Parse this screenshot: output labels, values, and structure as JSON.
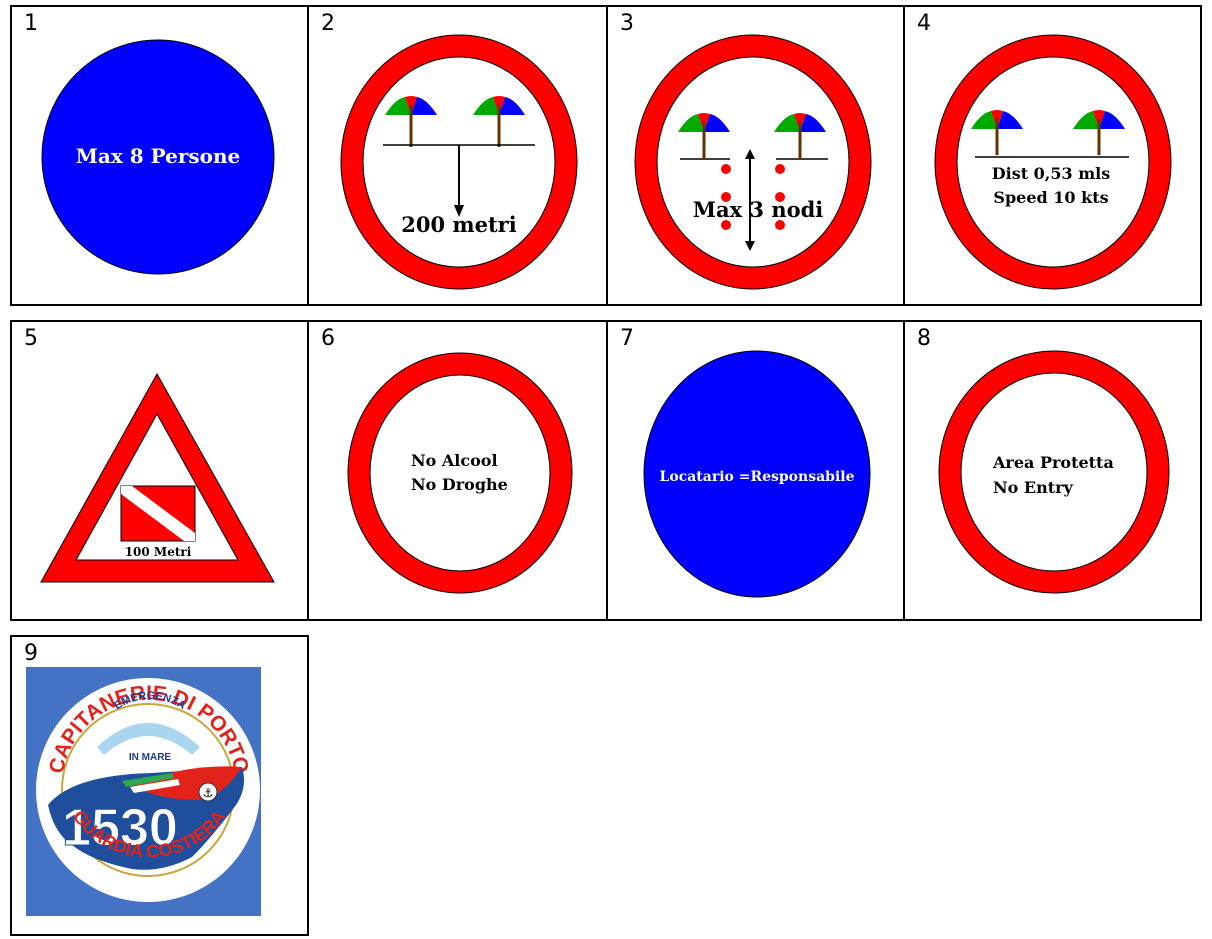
{
  "signs": [
    {
      "number": "1",
      "text": "Max 8 Persone"
    },
    {
      "number": "2",
      "text": "200 metri"
    },
    {
      "number": "3",
      "text": "Max 3 nodi"
    },
    {
      "number": "4",
      "line1": "Dist 0,53 mls",
      "line2": "Speed 10 kts"
    },
    {
      "number": "5",
      "text": "100 Metri"
    },
    {
      "number": "6",
      "line1": "No Alcool",
      "line2": "No Droghe"
    },
    {
      "number": "7",
      "text": "Locatario =Responsabile"
    },
    {
      "number": "8",
      "line1": "Area Protetta",
      "line2": "No Entry"
    },
    {
      "number": "9",
      "logo": {
        "top_text": "CAPITANERIE DI PORTO",
        "inner_text_1": "EMERGENZA",
        "inner_text_2": "IN MARE",
        "small_text": "Numero Blu",
        "number": "1530",
        "bottom_text": "GUARDIA COSTIERA"
      }
    }
  ],
  "colors": {
    "red": "#ff0000",
    "blue": "#0000ff",
    "logo_bg": "#4472c4",
    "white": "#ffffff",
    "black": "#000000"
  }
}
